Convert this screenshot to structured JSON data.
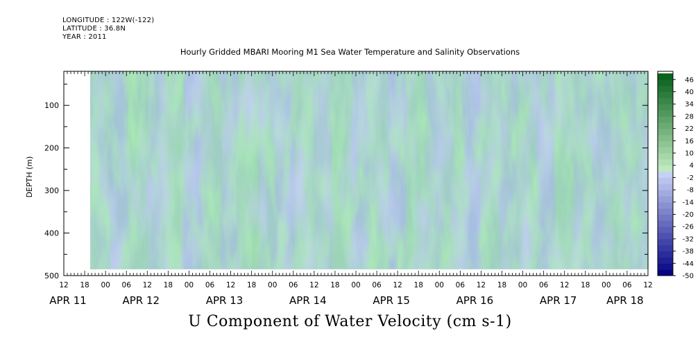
{
  "header": {
    "longitude": "LONGITUDE : 122W(-122)",
    "latitude": "LATITUDE : 36.8N",
    "year": "YEAR : 2011"
  },
  "chart_data": {
    "type": "heatmap",
    "title": "Hourly Gridded MBARI Mooring M1 Sea Water Temperature and Salinity Observations",
    "xlabel": "U Component of Water Velocity (cm s-1)",
    "ylabel": "DEPTH (m)",
    "y_ticks": [
      100,
      200,
      300,
      400,
      500
    ],
    "ylim": [
      500,
      20
    ],
    "y_reversed": true,
    "x_hour_ticks": [
      "12",
      "18",
      "00",
      "06",
      "12",
      "18",
      "00",
      "06",
      "12",
      "18",
      "00",
      "06",
      "12",
      "18",
      "00",
      "06",
      "12",
      "18",
      "00",
      "06",
      "12",
      "18",
      "00",
      "06",
      "12",
      "18",
      "00",
      "06",
      "12"
    ],
    "x_date_labels": [
      "APR 11",
      "APR 12",
      "APR 13",
      "APR 14",
      "APR 15",
      "APR 16",
      "APR 17",
      "APR 18"
    ],
    "colorbar": {
      "labels": [
        "46",
        "40",
        "34",
        "28",
        "22",
        "16",
        "10",
        "4",
        "-2",
        "-8",
        "-14",
        "-20",
        "-26",
        "-32",
        "-38",
        "-44",
        "-50"
      ],
      "min": -50,
      "max": 50,
      "step": 3
    },
    "data_extent": {
      "start": "APR 11 20:00",
      "end": "APR 18 12:00",
      "depth_top": 20,
      "depth_bottom": 485
    },
    "grid": false,
    "colormap": "blue-white-green"
  }
}
